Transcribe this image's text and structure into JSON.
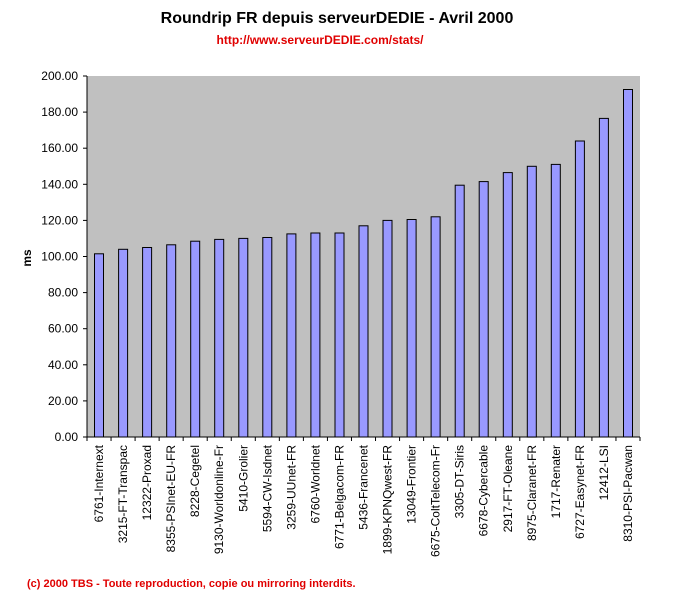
{
  "chart_data": {
    "type": "bar",
    "title": "Roundrip FR depuis serveurDEDIE - Avril 2000",
    "subtitle": "http://www.serveurDEDIE.com/stats/",
    "xlabel": "",
    "ylabel": "ms",
    "ylim": [
      0,
      200
    ],
    "ytick_step": 20,
    "ytick_labels": [
      "0.00",
      "20.00",
      "40.00",
      "60.00",
      "80.00",
      "100.00",
      "120.00",
      "140.00",
      "160.00",
      "180.00",
      "200.00"
    ],
    "categories": [
      "6761-Internext",
      "3215-FT-Transpac",
      "12322-Proxad",
      "8355-PSInet-EU-FR",
      "8228-Cegetel",
      "9130-Worldonline-Fr",
      "5410-Grolier",
      "5594-CW-Isdnet",
      "3259-UUnet-FR",
      "6760-Worldnet",
      "6771-Belgacom-FR",
      "5436-Francenet",
      "1899-KPNQwest-FR",
      "13049-Frontier",
      "6675-ColtTelecom-Fr",
      "3305-DT-Siris",
      "6678-Cybercable",
      "2917-FT-Oleane",
      "8975-Claranet-FR",
      "1717-Renater",
      "6727-Easynet-FR",
      "12412-LSI",
      "8310-PSI-Pacwan"
    ],
    "values": [
      101.5,
      104,
      105,
      106.5,
      108.5,
      109.5,
      110,
      110.5,
      112.5,
      113,
      113,
      117,
      120,
      120.5,
      122,
      139.5,
      141.5,
      146.5,
      150,
      151,
      164,
      176.5,
      192.5
    ],
    "bar_color": "#9999ff",
    "plot_bg": "#c0c0c0",
    "grid": false
  },
  "footer": "(c) 2000 TBS - Toute reproduction, copie ou mirroring interdits."
}
